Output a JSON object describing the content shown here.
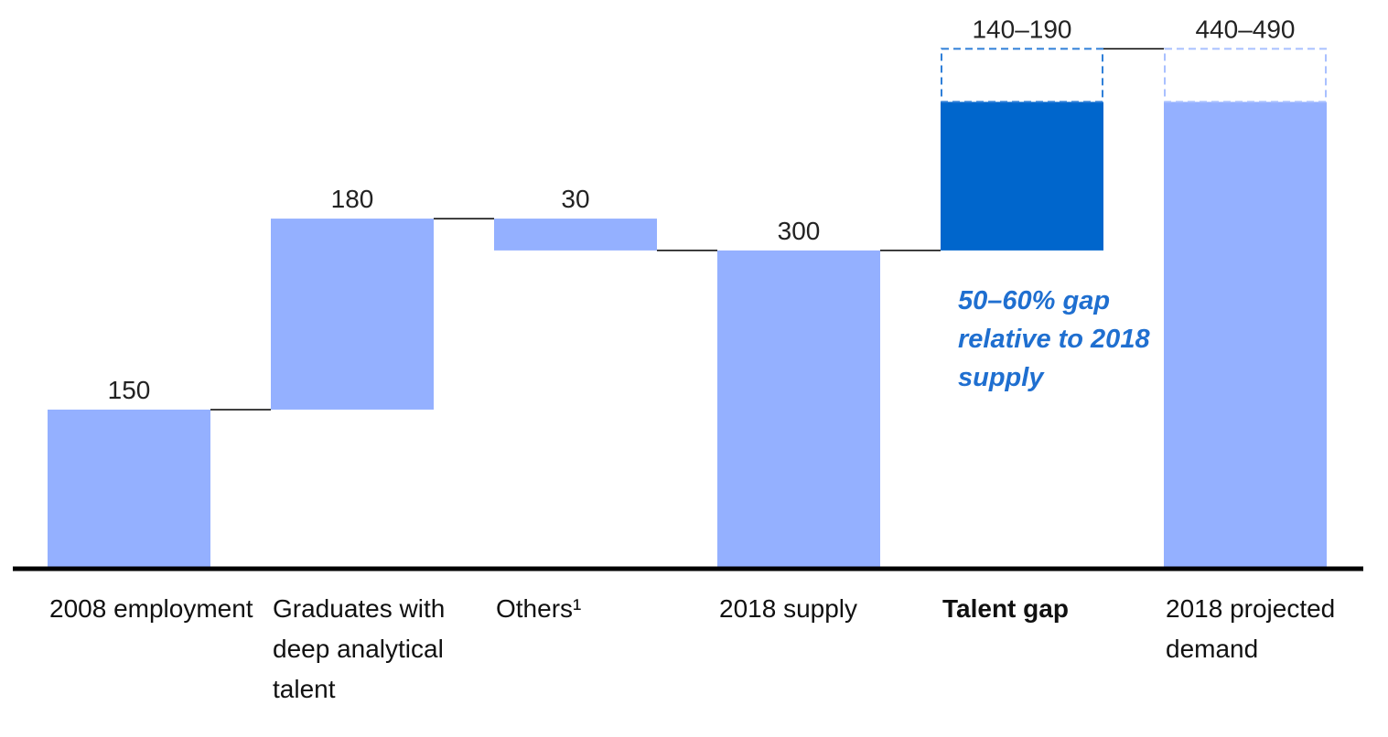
{
  "chart_data": {
    "type": "waterfall",
    "categories": [
      "2008 employment",
      "Graduates with deep analytical talent",
      "Others¹",
      "2018 supply",
      "Talent gap",
      "2018 projected demand"
    ],
    "kinds": [
      "total",
      "delta",
      "delta",
      "total",
      "delta",
      "total"
    ],
    "values": [
      150,
      180,
      -30,
      300,
      140,
      440
    ],
    "range_high": [
      null,
      null,
      null,
      null,
      190,
      490
    ],
    "value_labels": [
      "150",
      "180",
      "30",
      "300",
      "140–190",
      "440–490"
    ],
    "colors": [
      "#94b0ff",
      "#94b0ff",
      "#94b0ff",
      "#94b0ff",
      "#0066cc",
      "#94b0ff"
    ],
    "range_colors": [
      null,
      null,
      null,
      null,
      "#2f7fd8",
      "#a9c0ff"
    ],
    "bold": [
      false,
      false,
      false,
      false,
      true,
      false
    ],
    "annotation": "50–60% gap relative to 2018 supply",
    "ylim": [
      0,
      530
    ]
  }
}
